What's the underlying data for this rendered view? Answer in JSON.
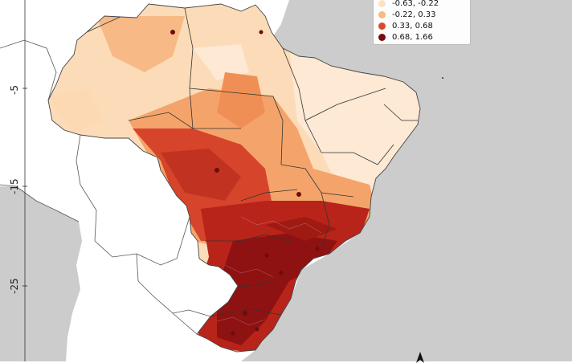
{
  "map": {
    "lat_ticks": [
      "-5",
      "-15",
      "-25"
    ],
    "ocean_color": "#cccccc",
    "land_color": "#ffffff",
    "region": "Brazil, municipalities"
  },
  "legend": {
    "classes": [
      {
        "label": "-0.63, -0.22",
        "color": "#fde2c3"
      },
      {
        "label": "-0.22,  0.33",
        "color": "#f7b983"
      },
      {
        "label": " 0.33,  0.68",
        "color": "#d9492e"
      },
      {
        "label": " 0.68,  1.66",
        "color": "#7a0d0d"
      }
    ]
  },
  "north_arrow": {
    "icon": "north-arrow-icon"
  }
}
